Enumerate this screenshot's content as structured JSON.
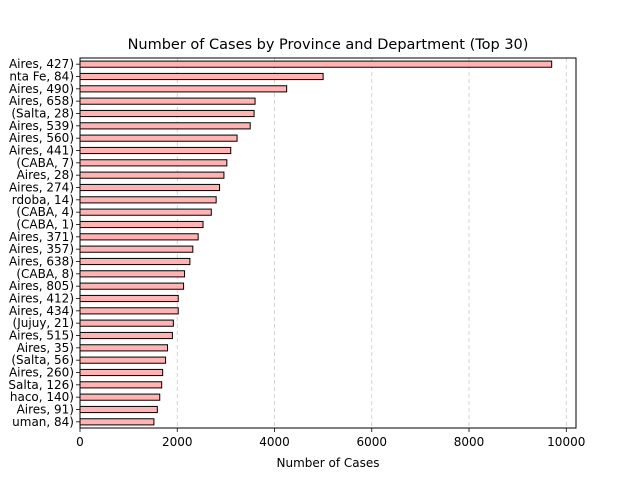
{
  "chart_data": {
    "type": "bar",
    "orientation": "horizontal",
    "title": "Number of Cases by Province and Department (Top 30)",
    "xlabel": "Number of Cases",
    "ylabel": "",
    "xlim": [
      0,
      10200
    ],
    "xticks": [
      0,
      2000,
      4000,
      6000,
      8000,
      10000
    ],
    "xtick_labels": [
      "0",
      "2000",
      "4000",
      "6000",
      "8000",
      "10000"
    ],
    "grid": "x-dashed",
    "colors": {
      "bar_fill": "#ffb3b3",
      "bar_edge": "#000000",
      "grid": "#c8c8c8",
      "axis": "#000000"
    },
    "categories": [
      "Aires, 427)",
      "nta Fe, 84)",
      "Aires, 490)",
      "Aires, 658)",
      "(Salta, 28)",
      "Aires, 539)",
      "Aires, 560)",
      "Aires, 441)",
      "(CABA, 7)",
      "Aires, 28)",
      "Aires, 274)",
      "rdoba, 14)",
      "(CABA, 4)",
      "(CABA, 1)",
      "Aires, 371)",
      "Aires, 357)",
      "Aires, 638)",
      "(CABA, 8)",
      "Aires, 805)",
      "Aires, 412)",
      "Aires, 434)",
      "(Jujuy, 21)",
      "Aires, 515)",
      "Aires, 35)",
      "(Salta, 56)",
      "Aires, 260)",
      "Salta, 126)",
      "haco, 140)",
      "Aires, 91)",
      "uman, 84)"
    ],
    "values": [
      9700,
      5000,
      4250,
      3600,
      3580,
      3500,
      3230,
      3100,
      3020,
      2960,
      2870,
      2800,
      2700,
      2530,
      2430,
      2320,
      2260,
      2150,
      2130,
      2020,
      2020,
      1920,
      1900,
      1800,
      1760,
      1700,
      1680,
      1640,
      1590,
      1520
    ]
  }
}
